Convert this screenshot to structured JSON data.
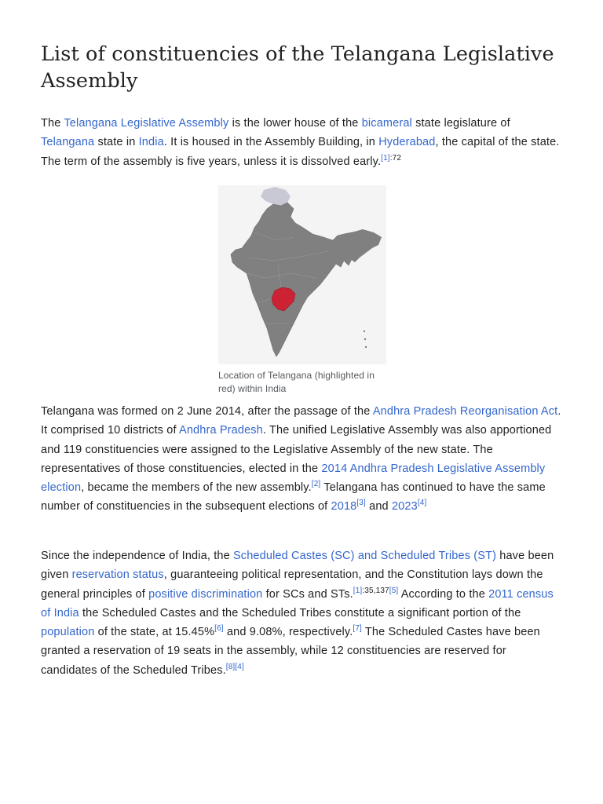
{
  "page_title": "List of constituencies of the Telangana Legislative Assembly",
  "colors": {
    "link": "#3366cc",
    "text": "#202122",
    "highlight_state": "#cc2233",
    "map_land": "#808080"
  },
  "p1": {
    "t0": "The ",
    "l0": "Telangana Legislative Assembly",
    "t1": " is the lower house of the ",
    "l1": "bicameral",
    "t2": " state legislature of ",
    "l2": "Telangana",
    "t3": " state in ",
    "l3": "India",
    "t4": ". It is housed in the Assembly Building, in ",
    "l4": "Hyderabad",
    "t5": ", the capital of the state. The term of the assembly is five years, unless it is dissolved early.",
    "r0": "[1]",
    "r0_page": ":72"
  },
  "figure": {
    "map_name": "india-map",
    "caption": "Location of Telangana (highlighted in red) within India"
  },
  "p2": {
    "t0": "Telangana was formed on 2 June 2014, after the passage of the ",
    "l0": "Andhra Pradesh Reorganisation Act",
    "t1": ". It comprised 10 districts of ",
    "l1": "Andhra Pradesh",
    "t2": ". The unified Legislative Assembly was also apportioned and 119 constituencies were assigned to the Legislative Assembly of the new state. The representatives of those constituencies, elected in the ",
    "l2": "2014 Andhra Pradesh Legislative Assembly election",
    "t3": ", became the members of the new assembly.",
    "r0": "[2]",
    "t4": " Telangana has continued to have the same number of constituencies in the subsequent elections of ",
    "l3": "2018",
    "r1": "[3]",
    "t5": " and ",
    "l4": "2023",
    "r2": "[4]"
  },
  "p3": {
    "t0": "Since the independence of India, the ",
    "l0": "Scheduled Castes (SC) and Scheduled Tribes (ST)",
    "t1": " have been given ",
    "l1": "reservation status",
    "t2": ", guaranteeing political representation, and the Constitution lays down the general principles of ",
    "l2": "positive discrimination",
    "t3": " for SCs and STs.",
    "r0": "[1]",
    "r0_page": ":35,137",
    "r1": "[5]",
    "t4": " According to the ",
    "l3": "2011 census of India",
    "t5": " the Scheduled Castes and the Scheduled Tribes constitute a significant portion of the ",
    "l4": "population",
    "t6": " of the state, at 15.45%",
    "r2": "[6]",
    "t7": " and 9.08%, respectively.",
    "r3": "[7]",
    "t8": " The Scheduled Castes have been granted a reservation of 19 seats in the assembly, while 12 constituencies are reserved for candidates of the Scheduled Tribes.",
    "r4": "[8]",
    "r5": "[4]"
  }
}
